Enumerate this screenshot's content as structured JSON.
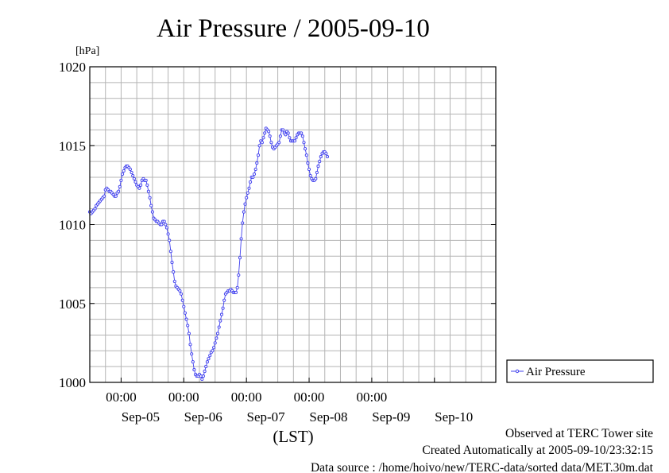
{
  "chart_data": {
    "type": "line",
    "title": "Air Pressure / 2005-09-10",
    "ylabel": "[hPa]",
    "xlabel": "(LST)",
    "ylim": [
      1000,
      1020
    ],
    "yticks": [
      "1000",
      "1005",
      "1010",
      "1015",
      "1020"
    ],
    "xlim": [
      "2005-09-04 12:00",
      "2005-09-10 23:30"
    ],
    "x_time_ticks": [
      "00:00",
      "00:00",
      "00:00",
      "00:00",
      "00:00"
    ],
    "x_date_labels": [
      "Sep-05",
      "Sep-06",
      "Sep-07",
      "Sep-08",
      "Sep-09",
      "Sep-10"
    ],
    "grid": true,
    "legend": "right",
    "series": [
      {
        "name": "Air Pressure",
        "color": "#4040ee",
        "marker": "open-circle",
        "x_start": "2005-09-04 12:00",
        "x_step_minutes": 30,
        "values": [
          1010.8,
          1010.7,
          1010.8,
          1010.9,
          1011.0,
          1011.2,
          1011.3,
          1011.4,
          1011.5,
          1011.6,
          1011.7,
          1011.8,
          1012.2,
          1012.3,
          1012.2,
          1012.1,
          1012.1,
          1012.0,
          1011.9,
          1011.8,
          1011.8,
          1012.0,
          1012.1,
          1012.4,
          1012.8,
          1013.2,
          1013.4,
          1013.6,
          1013.7,
          1013.7,
          1013.6,
          1013.5,
          1013.3,
          1013.1,
          1012.9,
          1012.7,
          1012.5,
          1012.4,
          1012.3,
          1012.5,
          1012.8,
          1012.9,
          1012.8,
          1012.8,
          1012.5,
          1012.1,
          1011.7,
          1011.2,
          1010.8,
          1010.4,
          1010.3,
          1010.2,
          1010.2,
          1010.1,
          1010.0,
          1010.0,
          1010.2,
          1010.2,
          1010.0,
          1009.8,
          1009.4,
          1009.0,
          1008.3,
          1007.6,
          1007.0,
          1006.4,
          1006.1,
          1006.0,
          1005.9,
          1005.8,
          1005.6,
          1005.2,
          1004.8,
          1004.4,
          1004.0,
          1003.6,
          1003.1,
          1002.4,
          1001.8,
          1001.3,
          1000.8,
          1000.5,
          1000.4,
          1000.4,
          1000.5,
          1000.4,
          1000.2,
          1000.4,
          1000.7,
          1001.0,
          1001.3,
          1001.5,
          1001.7,
          1001.9,
          1002.0,
          1002.2,
          1002.5,
          1002.8,
          1003.1,
          1003.5,
          1003.9,
          1004.3,
          1004.7,
          1005.2,
          1005.6,
          1005.7,
          1005.8,
          1005.8,
          1005.9,
          1005.8,
          1005.7,
          1005.7,
          1005.7,
          1006.0,
          1006.8,
          1007.9,
          1009.1,
          1010.1,
          1010.8,
          1011.3,
          1011.7,
          1012.0,
          1012.3,
          1012.7,
          1013.0,
          1013.0,
          1013.2,
          1013.5,
          1013.9,
          1014.4,
          1015.0,
          1015.3,
          1015.2,
          1015.5,
          1015.8,
          1016.1,
          1016.0,
          1015.9,
          1015.6,
          1015.2,
          1014.9,
          1014.8,
          1014.9,
          1015.0,
          1015.1,
          1015.2,
          1015.6,
          1016.0,
          1016.0,
          1015.8,
          1015.7,
          1015.9,
          1015.8,
          1015.5,
          1015.3,
          1015.3,
          1015.3,
          1015.3,
          1015.5,
          1015.7,
          1015.8,
          1015.8,
          1015.8,
          1015.6,
          1015.2,
          1014.8,
          1014.4,
          1013.9,
          1013.5,
          1013.1,
          1012.9,
          1012.8,
          1012.8,
          1012.9,
          1013.3,
          1013.7,
          1014.0,
          1014.3,
          1014.5,
          1014.6,
          1014.6,
          1014.5,
          1014.3
        ]
      }
    ],
    "annotations": [
      "Observed at TERC Tower site",
      "Created Automatically at 2005-09-10/23:32:15",
      "Data source : /home/hoivo/new/TERC-data/sorted  data/MET.30m.dat"
    ]
  }
}
